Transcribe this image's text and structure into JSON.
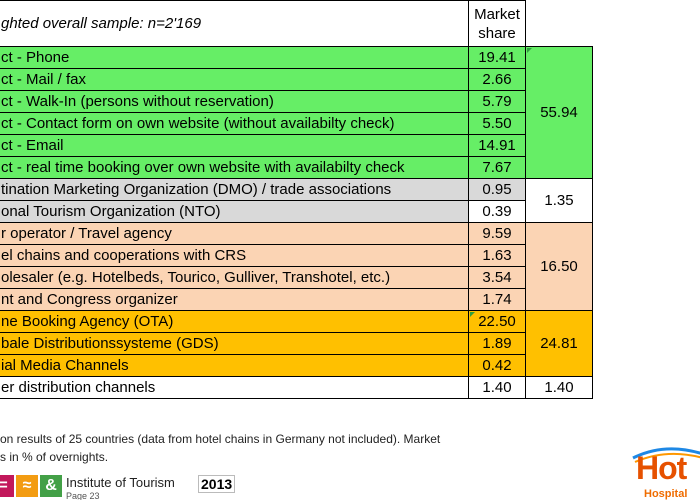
{
  "table": {
    "header_label": "ghted overall sample: n=2'169",
    "header_value_line1": "Market",
    "header_value_line2": "share",
    "rows": [
      {
        "label": "ct - Phone",
        "value": "19.41"
      },
      {
        "label": "ct - Mail / fax",
        "value": "2.66"
      },
      {
        "label": "ct - Walk-In (persons without reservation)",
        "value": "5.79"
      },
      {
        "label": "ct - Contact form on own website (without availabilty check)",
        "value": "5.50"
      },
      {
        "label": "ct - Email",
        "value": "14.91"
      },
      {
        "label": "ct - real time booking over own website with availabilty check",
        "value": "7.67"
      },
      {
        "label": "tination Marketing Organization (DMO) / trade associations",
        "value": "0.95"
      },
      {
        "label": "onal Tourism Organization (NTO)",
        "value": "0.39"
      },
      {
        "label": "r operator / Travel agency",
        "value": "9.59"
      },
      {
        "label": "el chains and cooperations with CRS",
        "value": "1.63"
      },
      {
        "label": "olesaler (e.g. Hotelbeds, Tourico, Gulliver, Transhotel, etc.)",
        "value": "3.54"
      },
      {
        "label": "nt and Congress organizer",
        "value": "1.74"
      },
      {
        "label": "ne Booking Agency (OTA)",
        "value": "22.50"
      },
      {
        "label": "bale Distributionssysteme (GDS)",
        "value": "1.89"
      },
      {
        "label": "ial Media Channels",
        "value": "0.42"
      },
      {
        "label": "er distribution channels",
        "value": "1.40"
      }
    ],
    "groups": [
      {
        "total": "55.94",
        "color": "#66ee66"
      },
      {
        "total": "1.35",
        "color": "#d9d9d9"
      },
      {
        "total": "16.50",
        "color": "#fbd4b4"
      },
      {
        "total": "24.81",
        "color": "#ffc000"
      },
      {
        "total": "1.40",
        "color": "#ffffff"
      }
    ]
  },
  "note": {
    "line1": "on results of 25 countries (data from hotel chains in Germany not included). Market",
    "line2": "s in % of overnights."
  },
  "footer": {
    "sq1_glyph": "=",
    "sq2_glyph": "≈",
    "sq3_glyph": "&",
    "institute": "Institute of Tourism",
    "year": "2013",
    "page": "Page 23"
  },
  "logo": {
    "text": "Hot",
    "sub": "Hospital"
  }
}
